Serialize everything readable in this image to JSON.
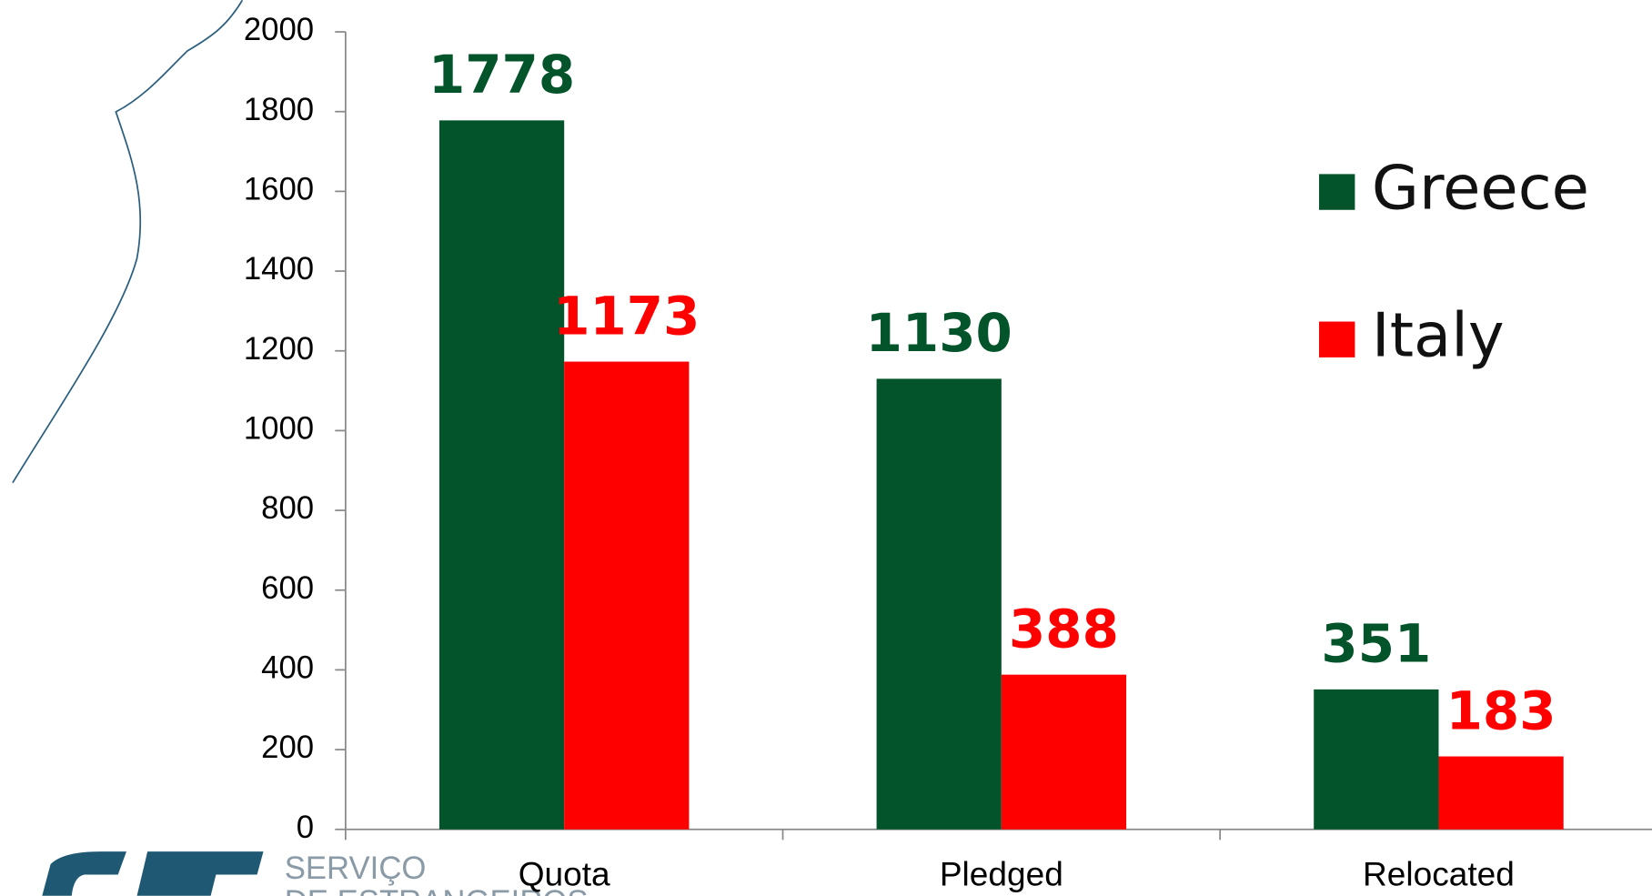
{
  "chart_data": {
    "type": "bar",
    "categories": [
      "Quota",
      "Pledged",
      "Relocated"
    ],
    "series": [
      {
        "name": "Greece",
        "color": "#03542a",
        "values": [
          1778,
          1130,
          351
        ]
      },
      {
        "name": "Italy",
        "color": "#ff0000",
        "values": [
          1173,
          388,
          183
        ]
      }
    ],
    "ylim": [
      0,
      2000
    ],
    "yticks": [
      0,
      200,
      400,
      600,
      800,
      1000,
      1200,
      1400,
      1600,
      1800,
      2000
    ],
    "legend": "right",
    "grid": false
  },
  "logo": {
    "line1": "SERVIÇO",
    "line2": "DE ESTRANGEIROS"
  }
}
